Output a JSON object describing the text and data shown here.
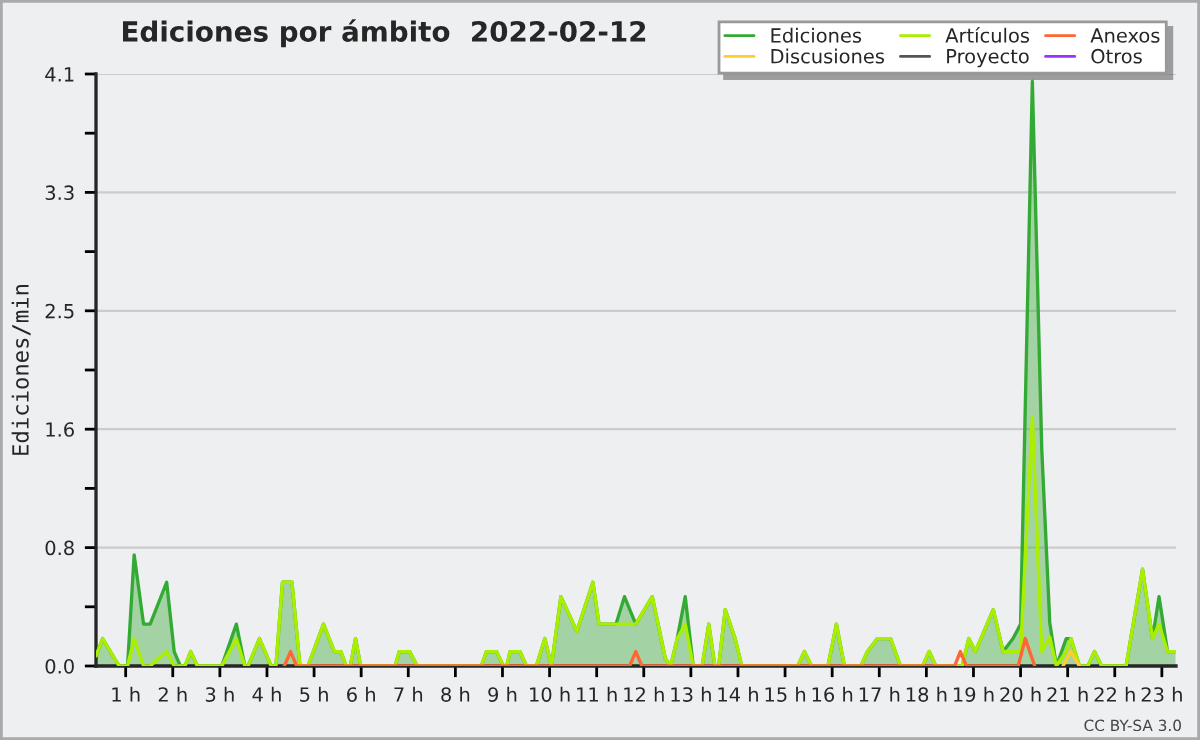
{
  "chart_data": {
    "type": "line",
    "title": "Ediciones por ámbito  2022-02-12",
    "ylabel": "Ediciones/min",
    "annotations": [
      "CC BY-SA 3.0"
    ],
    "xlim": [
      0.37,
      23.3
    ],
    "xticks": [
      {
        "value": 1,
        "label": "1 h"
      },
      {
        "value": 2,
        "label": "2 h"
      },
      {
        "value": 3,
        "label": "3 h"
      },
      {
        "value": 4,
        "label": "4 h"
      },
      {
        "value": 5,
        "label": "5 h"
      },
      {
        "value": 6,
        "label": "6 h"
      },
      {
        "value": 7,
        "label": "7 h"
      },
      {
        "value": 8,
        "label": "8 h"
      },
      {
        "value": 9,
        "label": "9 h"
      },
      {
        "value": 10,
        "label": "10 h"
      },
      {
        "value": 11,
        "label": "11 h"
      },
      {
        "value": 12,
        "label": "12 h"
      },
      {
        "value": 13,
        "label": "13 h"
      },
      {
        "value": 14,
        "label": "14 h"
      },
      {
        "value": 15,
        "label": "15 h"
      },
      {
        "value": 16,
        "label": "16 h"
      },
      {
        "value": 17,
        "label": "17 h"
      },
      {
        "value": 18,
        "label": "18 h"
      },
      {
        "value": 19,
        "label": "19 h"
      },
      {
        "value": 20,
        "label": "20 h"
      },
      {
        "value": 21,
        "label": "21 h"
      },
      {
        "value": 22,
        "label": "22 h"
      },
      {
        "value": 23,
        "label": "23 h"
      }
    ],
    "ylim": [
      0,
      4.1
    ],
    "yticks": [
      {
        "value": 0,
        "label": "0.0"
      },
      {
        "value": 0.41,
        "label": null
      },
      {
        "value": 0.82,
        "label": "0.8"
      },
      {
        "value": 1.23,
        "label": null
      },
      {
        "value": 1.64,
        "label": "1.6"
      },
      {
        "value": 2.05,
        "label": null
      },
      {
        "value": 2.46,
        "label": "2.5"
      },
      {
        "value": 2.87,
        "label": null
      },
      {
        "value": 3.28,
        "label": "3.3"
      },
      {
        "value": 3.69,
        "label": null
      },
      {
        "value": 4.1,
        "label": "4.1"
      }
    ],
    "grid": "y",
    "legend": "top right",
    "series": [
      {
        "name": "Ediciones",
        "type": "area",
        "color": "#33aa33",
        "x": [
          0.37,
          0.51,
          0.86,
          1.04,
          1.18,
          1.38,
          1.52,
          1.87,
          2.03,
          2.16,
          2.26,
          2.38,
          2.52,
          3.04,
          3.35,
          3.53,
          3.6,
          3.84,
          4.09,
          4.19,
          4.33,
          4.53,
          4.7,
          4.87,
          5.2,
          5.43,
          5.57,
          5.68,
          5.77,
          5.88,
          5.99,
          6.72,
          6.81,
          7.03,
          7.19,
          8.55,
          8.66,
          8.87,
          9.02,
          9.09,
          9.16,
          9.37,
          9.51,
          9.72,
          9.9,
          10.04,
          10.24,
          10.58,
          10.92,
          11.05,
          11.41,
          11.59,
          11.83,
          12.18,
          12.46,
          12.57,
          12.71,
          12.88,
          13.05,
          13.24,
          13.38,
          13.51,
          13.59,
          13.73,
          13.94,
          14.08,
          15.27,
          15.41,
          15.56,
          15.91,
          16.09,
          16.26,
          16.61,
          16.75,
          16.96,
          17.24,
          17.45,
          17.92,
          18.06,
          18.2,
          18.76,
          18.9,
          19.04,
          19.42,
          19.63,
          19.84,
          20.0,
          20.25,
          20.45,
          20.62,
          20.76,
          20.97,
          21.07,
          21.25,
          21.43,
          21.57,
          21.72,
          22.24,
          22.59,
          22.8,
          22.94,
          23.12,
          23.29
        ],
        "values": [
          0.07,
          0.19,
          0,
          0,
          0.77,
          0.29,
          0.29,
          0.58,
          0.1,
          0,
          0,
          0.1,
          0,
          0,
          0.29,
          0,
          0,
          0.19,
          0,
          0,
          0.58,
          0.58,
          0,
          0,
          0.29,
          0.1,
          0.1,
          0,
          0,
          0.19,
          0,
          0,
          0.1,
          0.1,
          0,
          0,
          0.1,
          0.1,
          0,
          0,
          0.1,
          0.1,
          0,
          0,
          0.19,
          0,
          0.48,
          0.24,
          0.58,
          0.29,
          0.29,
          0.48,
          0.29,
          0.48,
          0.05,
          0,
          0.19,
          0.48,
          0,
          0,
          0.29,
          0,
          0,
          0.39,
          0.19,
          0,
          0,
          0.1,
          0,
          0,
          0.29,
          0,
          0,
          0.1,
          0.19,
          0.19,
          0,
          0,
          0.1,
          0,
          0,
          0.19,
          0.1,
          0.39,
          0.1,
          0.19,
          0.29,
          4.05,
          1.5,
          0.3,
          0,
          0.19,
          0.19,
          0,
          0,
          0.1,
          0,
          0,
          0.67,
          0.19,
          0.48,
          0.1,
          0.1
        ]
      },
      {
        "name": "Discusiones",
        "color": "#ffcc33",
        "x": [
          20.9,
          21.07,
          21.25
        ],
        "values": [
          0,
          0.1,
          0
        ]
      },
      {
        "name": "Artículos",
        "color": "#aaee00",
        "x": [
          0.37,
          0.51,
          0.86,
          1.04,
          1.18,
          1.38,
          1.52,
          1.87,
          2.03,
          2.16,
          2.26,
          2.38,
          2.52,
          3.04,
          3.35,
          3.53,
          3.6,
          3.84,
          4.09,
          4.19,
          4.33,
          4.53,
          4.7,
          4.87,
          5.2,
          5.43,
          5.57,
          5.68,
          5.77,
          5.88,
          5.99,
          6.72,
          6.81,
          7.03,
          7.19,
          8.55,
          8.66,
          8.87,
          9.02,
          9.09,
          9.16,
          9.37,
          9.51,
          9.72,
          9.9,
          10.04,
          10.24,
          10.58,
          10.92,
          11.05,
          11.41,
          11.59,
          11.83,
          12.18,
          12.46,
          12.57,
          12.71,
          12.88,
          13.05,
          13.24,
          13.38,
          13.51,
          13.59,
          13.73,
          13.94,
          14.08,
          15.27,
          15.41,
          15.56,
          15.91,
          16.09,
          16.26,
          16.61,
          16.75,
          16.96,
          17.24,
          17.45,
          17.92,
          18.06,
          18.2,
          18.76,
          18.9,
          19.04,
          19.42,
          19.63,
          19.84,
          20.0,
          20.25,
          20.45,
          20.62,
          20.76,
          20.97,
          21.07,
          21.25,
          21.43,
          21.57,
          21.72,
          22.24,
          22.59,
          22.8,
          22.94,
          23.12,
          23.29
        ],
        "values": [
          0.07,
          0.19,
          0,
          0,
          0.19,
          0,
          0,
          0.1,
          0,
          0,
          0,
          0.1,
          0,
          0,
          0.19,
          0,
          0,
          0.19,
          0,
          0,
          0.58,
          0.58,
          0,
          0,
          0.29,
          0.1,
          0.1,
          0,
          0,
          0.19,
          0,
          0,
          0.1,
          0.1,
          0,
          0,
          0.1,
          0.1,
          0,
          0,
          0.1,
          0.1,
          0,
          0,
          0.19,
          0,
          0.48,
          0.24,
          0.58,
          0.29,
          0.29,
          0.29,
          0.29,
          0.48,
          0.05,
          0,
          0.19,
          0.29,
          0,
          0,
          0.29,
          0,
          0,
          0.39,
          0.19,
          0,
          0,
          0.1,
          0,
          0,
          0.29,
          0,
          0,
          0.1,
          0.19,
          0.19,
          0,
          0,
          0.1,
          0,
          0,
          0.19,
          0.1,
          0.39,
          0.1,
          0.1,
          0.1,
          1.72,
          0.1,
          0.2,
          0,
          0.1,
          0.19,
          0,
          0,
          0.1,
          0,
          0,
          0.67,
          0.19,
          0.29,
          0.1,
          0.1
        ]
      },
      {
        "name": "Proyecto",
        "color": "#555555"
      },
      {
        "name": "Anexos",
        "color": "#ff6633",
        "x": [
          4.37,
          4.5,
          4.63,
          11.7,
          11.83,
          11.96,
          18.6,
          18.72,
          18.85,
          19.95,
          20.1,
          20.3
        ],
        "values": [
          0,
          0.1,
          0,
          0,
          0.1,
          0,
          0,
          0.1,
          0,
          0,
          0.19,
          0
        ]
      },
      {
        "name": "Otros",
        "color": "#9933ff"
      }
    ]
  }
}
